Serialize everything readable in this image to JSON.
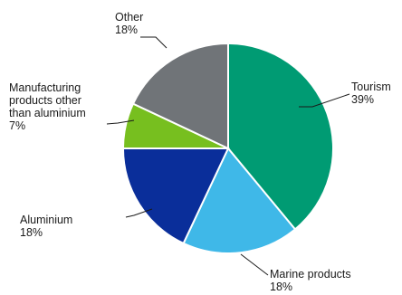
{
  "chart_data": {
    "type": "pie",
    "start_angle_deg": 0,
    "direction": "clockwise",
    "slices": [
      {
        "label": "Tourism",
        "percent_label": "39%",
        "value": 39,
        "color": "#009b73"
      },
      {
        "label": "Marine products",
        "percent_label": "18%",
        "value": 18,
        "color": "#3fb8e8"
      },
      {
        "label": "Aluminium",
        "percent_label": "18%",
        "value": 18,
        "color": "#0a2e9a"
      },
      {
        "label": "Manufacturing products other than aluminium",
        "percent_label": "7%",
        "value": 7,
        "color": "#77bf1f"
      },
      {
        "label": "Other",
        "percent_label": "18%",
        "value": 18,
        "color": "#707478"
      }
    ]
  }
}
